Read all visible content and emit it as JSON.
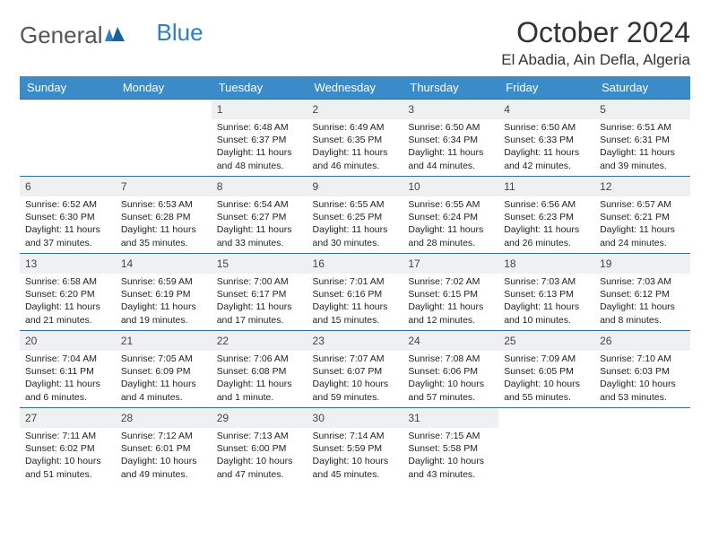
{
  "brand": {
    "part1": "General",
    "part2": "Blue"
  },
  "title": "October 2024",
  "location": "El Abadia, Ain Defla, Algeria",
  "colors": {
    "header_bg": "#3b8bc9",
    "header_text": "#ffffff",
    "cell_border": "#2f6fa6",
    "daynum_bg": "#eef0f2",
    "logo_gray": "#555555",
    "logo_blue": "#2f7ec2"
  },
  "weekdays": [
    "Sunday",
    "Monday",
    "Tuesday",
    "Wednesday",
    "Thursday",
    "Friday",
    "Saturday"
  ],
  "weeks": [
    [
      {
        "n": "",
        "sr": "",
        "ss": "",
        "dl": ""
      },
      {
        "n": "",
        "sr": "",
        "ss": "",
        "dl": ""
      },
      {
        "n": "1",
        "sr": "Sunrise: 6:48 AM",
        "ss": "Sunset: 6:37 PM",
        "dl": "Daylight: 11 hours and 48 minutes."
      },
      {
        "n": "2",
        "sr": "Sunrise: 6:49 AM",
        "ss": "Sunset: 6:35 PM",
        "dl": "Daylight: 11 hours and 46 minutes."
      },
      {
        "n": "3",
        "sr": "Sunrise: 6:50 AM",
        "ss": "Sunset: 6:34 PM",
        "dl": "Daylight: 11 hours and 44 minutes."
      },
      {
        "n": "4",
        "sr": "Sunrise: 6:50 AM",
        "ss": "Sunset: 6:33 PM",
        "dl": "Daylight: 11 hours and 42 minutes."
      },
      {
        "n": "5",
        "sr": "Sunrise: 6:51 AM",
        "ss": "Sunset: 6:31 PM",
        "dl": "Daylight: 11 hours and 39 minutes."
      }
    ],
    [
      {
        "n": "6",
        "sr": "Sunrise: 6:52 AM",
        "ss": "Sunset: 6:30 PM",
        "dl": "Daylight: 11 hours and 37 minutes."
      },
      {
        "n": "7",
        "sr": "Sunrise: 6:53 AM",
        "ss": "Sunset: 6:28 PM",
        "dl": "Daylight: 11 hours and 35 minutes."
      },
      {
        "n": "8",
        "sr": "Sunrise: 6:54 AM",
        "ss": "Sunset: 6:27 PM",
        "dl": "Daylight: 11 hours and 33 minutes."
      },
      {
        "n": "9",
        "sr": "Sunrise: 6:55 AM",
        "ss": "Sunset: 6:25 PM",
        "dl": "Daylight: 11 hours and 30 minutes."
      },
      {
        "n": "10",
        "sr": "Sunrise: 6:55 AM",
        "ss": "Sunset: 6:24 PM",
        "dl": "Daylight: 11 hours and 28 minutes."
      },
      {
        "n": "11",
        "sr": "Sunrise: 6:56 AM",
        "ss": "Sunset: 6:23 PM",
        "dl": "Daylight: 11 hours and 26 minutes."
      },
      {
        "n": "12",
        "sr": "Sunrise: 6:57 AM",
        "ss": "Sunset: 6:21 PM",
        "dl": "Daylight: 11 hours and 24 minutes."
      }
    ],
    [
      {
        "n": "13",
        "sr": "Sunrise: 6:58 AM",
        "ss": "Sunset: 6:20 PM",
        "dl": "Daylight: 11 hours and 21 minutes."
      },
      {
        "n": "14",
        "sr": "Sunrise: 6:59 AM",
        "ss": "Sunset: 6:19 PM",
        "dl": "Daylight: 11 hours and 19 minutes."
      },
      {
        "n": "15",
        "sr": "Sunrise: 7:00 AM",
        "ss": "Sunset: 6:17 PM",
        "dl": "Daylight: 11 hours and 17 minutes."
      },
      {
        "n": "16",
        "sr": "Sunrise: 7:01 AM",
        "ss": "Sunset: 6:16 PM",
        "dl": "Daylight: 11 hours and 15 minutes."
      },
      {
        "n": "17",
        "sr": "Sunrise: 7:02 AM",
        "ss": "Sunset: 6:15 PM",
        "dl": "Daylight: 11 hours and 12 minutes."
      },
      {
        "n": "18",
        "sr": "Sunrise: 7:03 AM",
        "ss": "Sunset: 6:13 PM",
        "dl": "Daylight: 11 hours and 10 minutes."
      },
      {
        "n": "19",
        "sr": "Sunrise: 7:03 AM",
        "ss": "Sunset: 6:12 PM",
        "dl": "Daylight: 11 hours and 8 minutes."
      }
    ],
    [
      {
        "n": "20",
        "sr": "Sunrise: 7:04 AM",
        "ss": "Sunset: 6:11 PM",
        "dl": "Daylight: 11 hours and 6 minutes."
      },
      {
        "n": "21",
        "sr": "Sunrise: 7:05 AM",
        "ss": "Sunset: 6:09 PM",
        "dl": "Daylight: 11 hours and 4 minutes."
      },
      {
        "n": "22",
        "sr": "Sunrise: 7:06 AM",
        "ss": "Sunset: 6:08 PM",
        "dl": "Daylight: 11 hours and 1 minute."
      },
      {
        "n": "23",
        "sr": "Sunrise: 7:07 AM",
        "ss": "Sunset: 6:07 PM",
        "dl": "Daylight: 10 hours and 59 minutes."
      },
      {
        "n": "24",
        "sr": "Sunrise: 7:08 AM",
        "ss": "Sunset: 6:06 PM",
        "dl": "Daylight: 10 hours and 57 minutes."
      },
      {
        "n": "25",
        "sr": "Sunrise: 7:09 AM",
        "ss": "Sunset: 6:05 PM",
        "dl": "Daylight: 10 hours and 55 minutes."
      },
      {
        "n": "26",
        "sr": "Sunrise: 7:10 AM",
        "ss": "Sunset: 6:03 PM",
        "dl": "Daylight: 10 hours and 53 minutes."
      }
    ],
    [
      {
        "n": "27",
        "sr": "Sunrise: 7:11 AM",
        "ss": "Sunset: 6:02 PM",
        "dl": "Daylight: 10 hours and 51 minutes."
      },
      {
        "n": "28",
        "sr": "Sunrise: 7:12 AM",
        "ss": "Sunset: 6:01 PM",
        "dl": "Daylight: 10 hours and 49 minutes."
      },
      {
        "n": "29",
        "sr": "Sunrise: 7:13 AM",
        "ss": "Sunset: 6:00 PM",
        "dl": "Daylight: 10 hours and 47 minutes."
      },
      {
        "n": "30",
        "sr": "Sunrise: 7:14 AM",
        "ss": "Sunset: 5:59 PM",
        "dl": "Daylight: 10 hours and 45 minutes."
      },
      {
        "n": "31",
        "sr": "Sunrise: 7:15 AM",
        "ss": "Sunset: 5:58 PM",
        "dl": "Daylight: 10 hours and 43 minutes."
      },
      {
        "n": "",
        "sr": "",
        "ss": "",
        "dl": ""
      },
      {
        "n": "",
        "sr": "",
        "ss": "",
        "dl": ""
      }
    ]
  ]
}
